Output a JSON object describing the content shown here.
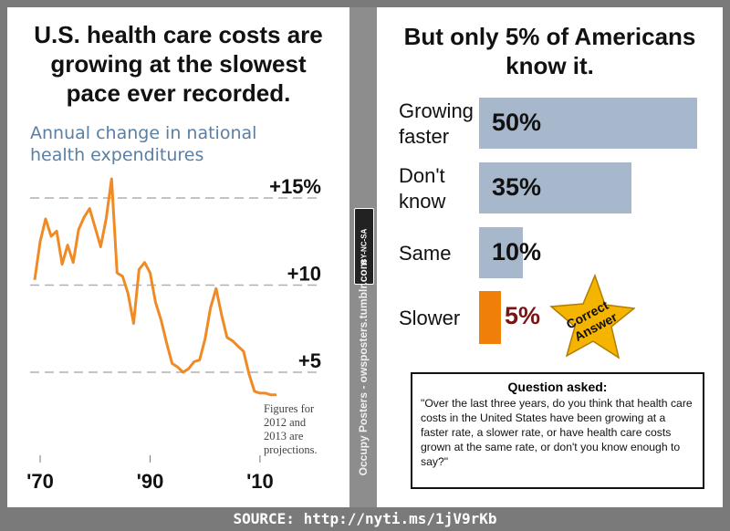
{
  "left": {
    "title_lines": [
      "U.S. health care costs are",
      "growing at the slowest",
      "pace ever recorded."
    ],
    "subtitle_lines": [
      "Annual change in national",
      "health expenditures"
    ],
    "footnote_lines": [
      "Figures for",
      "2012 and",
      "2013 are",
      "projections."
    ]
  },
  "right": {
    "title_lines": [
      "But only 5% of Americans",
      "know it."
    ],
    "correct_answer_lines": [
      "Correct",
      "Answer"
    ],
    "question_heading": "Question asked:",
    "question_text": "\"Over the last three years, do you think that health care costs in the United States have been growing at a faster rate, a slower rate, or have health care costs grown at the same rate, or don't you know enough to say?\""
  },
  "divider": {
    "vertical_text": "Occupy Posters - owsposters.tumblr.com",
    "license": "BY-NC-SA"
  },
  "source": "SOURCE: http://nyti.ms/1jV9rKb",
  "colors": {
    "line": "#f08a24",
    "bar": "#a7b8cc",
    "highlight": "#f07f0a",
    "highlight_text": "#7a1414",
    "subtitle": "#5a7fa3",
    "star": "#f4b400"
  },
  "chart_data": [
    {
      "type": "line",
      "x": [
        1969,
        1970,
        1971,
        1972,
        1973,
        1974,
        1975,
        1976,
        1977,
        1978,
        1979,
        1980,
        1981,
        1982,
        1983,
        1984,
        1985,
        1986,
        1987,
        1988,
        1989,
        1990,
        1991,
        1992,
        1993,
        1994,
        1995,
        1996,
        1997,
        1998,
        1999,
        2000,
        2001,
        2002,
        2003,
        2004,
        2005,
        2006,
        2007,
        2008,
        2009,
        2010,
        2011,
        2012,
        2013
      ],
      "series": [
        {
          "values": [
            10.3,
            12.5,
            13.8,
            12.8,
            13.1,
            11.2,
            12.3,
            11.3,
            13.2,
            13.9,
            14.4,
            13.3,
            12.2,
            13.8,
            16.1,
            10.7,
            10.5,
            9.5,
            7.8,
            10.9,
            11.3,
            10.7,
            9.0,
            8.0,
            6.7,
            5.5,
            5.3,
            5.0,
            5.2,
            5.6,
            5.7,
            6.9,
            8.7,
            9.8,
            8.3,
            7.0,
            6.8,
            6.5,
            6.2,
            4.9,
            3.9,
            3.8,
            3.8,
            3.7,
            3.7
          ]
        }
      ],
      "yticks": [
        {
          "value": 15,
          "label": "+15%"
        },
        {
          "value": 10,
          "label": "+10"
        },
        {
          "value": 5,
          "label": "+5"
        }
      ],
      "xticks": [
        {
          "value": 1970,
          "label": "'70"
        },
        {
          "value": 1990,
          "label": "'90"
        },
        {
          "value": 2010,
          "label": "'10"
        }
      ],
      "grid": true
    },
    {
      "type": "bar",
      "categories": [
        "Growing faster",
        "Don't know",
        "Same",
        "Slower"
      ],
      "values": [
        50,
        35,
        10,
        5
      ],
      "value_labels": [
        "50%",
        "35%",
        "10%",
        "5%"
      ]
    }
  ]
}
